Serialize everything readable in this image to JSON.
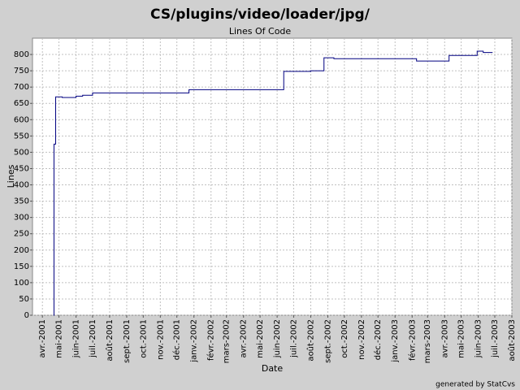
{
  "chart_data": {
    "type": "step-line",
    "title": "CS/plugins/video/loader/jpg/",
    "subtitle": "Lines Of Code",
    "x_label": "Date",
    "y_label": "Lines",
    "footer": "generated by StatCvs",
    "grid": true,
    "xlim": [
      "2001-03-14",
      "2003-08-01"
    ],
    "ylim": [
      0,
      850
    ],
    "yticks": [
      0,
      50,
      100,
      150,
      200,
      250,
      300,
      350,
      400,
      450,
      500,
      550,
      600,
      650,
      700,
      750,
      800
    ],
    "xticks": [
      {
        "value": "2001-04-01",
        "label": "avr.-2001"
      },
      {
        "value": "2001-05-01",
        "label": "mai-2001"
      },
      {
        "value": "2001-06-01",
        "label": "juin-2001"
      },
      {
        "value": "2001-07-01",
        "label": "juil.-2001"
      },
      {
        "value": "2001-08-01",
        "label": "août-2001"
      },
      {
        "value": "2001-09-01",
        "label": "sept.-2001"
      },
      {
        "value": "2001-10-01",
        "label": "oct.-2001"
      },
      {
        "value": "2001-11-01",
        "label": "nov.-2001"
      },
      {
        "value": "2001-12-01",
        "label": "déc.-2001"
      },
      {
        "value": "2002-01-01",
        "label": "janv.-2002"
      },
      {
        "value": "2002-02-01",
        "label": "févr.-2002"
      },
      {
        "value": "2002-03-01",
        "label": "mars-2002"
      },
      {
        "value": "2002-04-01",
        "label": "avr.-2002"
      },
      {
        "value": "2002-05-01",
        "label": "mai-2002"
      },
      {
        "value": "2002-06-01",
        "label": "juin-2002"
      },
      {
        "value": "2002-07-01",
        "label": "juil.-2002"
      },
      {
        "value": "2002-08-01",
        "label": "août-2002"
      },
      {
        "value": "2002-09-01",
        "label": "sept.-2002"
      },
      {
        "value": "2002-10-01",
        "label": "oct.-2002"
      },
      {
        "value": "2002-11-01",
        "label": "nov.-2002"
      },
      {
        "value": "2002-12-01",
        "label": "déc.-2002"
      },
      {
        "value": "2003-01-01",
        "label": "janv.-2003"
      },
      {
        "value": "2003-02-01",
        "label": "févr.-2003"
      },
      {
        "value": "2003-03-01",
        "label": "mars-2003"
      },
      {
        "value": "2003-04-01",
        "label": "avr.-2003"
      },
      {
        "value": "2003-05-01",
        "label": "mai-2003"
      },
      {
        "value": "2003-06-01",
        "label": "juin-2003"
      },
      {
        "value": "2003-07-01",
        "label": "juil.-2003"
      },
      {
        "value": "2003-08-01",
        "label": "août-2003"
      }
    ],
    "x": [
      "2001-04-21",
      "2001-04-22",
      "2001-04-25",
      "2001-05-07",
      "2001-06-01",
      "2001-06-13",
      "2001-07-01",
      "2001-12-23",
      "2002-06-13",
      "2002-08-01",
      "2002-08-25",
      "2002-09-12",
      "2003-02-09",
      "2003-04-09",
      "2003-05-30",
      "2003-06-10",
      "2003-06-27"
    ],
    "series": [
      {
        "color": "#000080",
        "values": [
          0,
          525,
          670,
          668,
          672,
          675,
          682,
          692,
          748,
          750,
          790,
          787,
          780,
          797,
          810,
          806,
          806
        ]
      }
    ]
  }
}
